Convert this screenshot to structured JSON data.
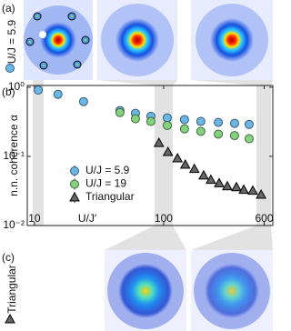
{
  "panels": {
    "a": {
      "label": "(a)",
      "text": "U/J = 5.9"
    },
    "b": {
      "label": "(b)"
    },
    "c": {
      "label": "(c)",
      "text": "Triangular"
    }
  },
  "chart_data": {
    "type": "scatter",
    "ylabel": "n.n. coherence α",
    "xlabel": "U/J′",
    "xscale": "log",
    "yscale": "log",
    "xlim": [
      8.8,
      700
    ],
    "ylim": [
      0.01,
      1.06
    ],
    "xticks": [
      10,
      100,
      600
    ],
    "yticks": [
      {
        "value": 0.01,
        "label": "10⁻²"
      },
      {
        "value": 0.1,
        "label": "10⁻¹"
      },
      {
        "value": 1,
        "label": "10⁰"
      }
    ],
    "legend": "lower left",
    "series": [
      {
        "name": "U/J = 5.9",
        "color": "#6cb6e6",
        "marker": "circle",
        "x": [
          10.7,
          15.2,
          24,
          45.9,
          60.5,
          79.7,
          106.7,
          145,
          194,
          265,
          354,
          459
        ],
        "values": [
          0.91,
          0.79,
          0.62,
          0.46,
          0.42,
          0.38,
          0.36,
          0.34,
          0.32,
          0.31,
          0.3,
          0.29
        ]
      },
      {
        "name": "U/J = 19",
        "color": "#84d27e",
        "marker": "circle",
        "x": [
          45.9,
          60.5,
          79.7,
          106.7,
          145,
          194,
          265,
          354,
          459
        ],
        "values": [
          0.43,
          0.35,
          0.32,
          0.28,
          0.25,
          0.23,
          0.21,
          0.2,
          0.18
        ]
      },
      {
        "name": "Triangular",
        "color": "#666666",
        "marker": "triangle",
        "x": [
          92,
          108,
          128,
          147,
          173,
          204,
          232,
          269,
          311,
          366,
          417,
          490,
          568
        ],
        "values": [
          0.157,
          0.116,
          0.094,
          0.076,
          0.066,
          0.053,
          0.046,
          0.041,
          0.037,
          0.036,
          0.033,
          0.032,
          0.028
        ]
      }
    ]
  }
}
